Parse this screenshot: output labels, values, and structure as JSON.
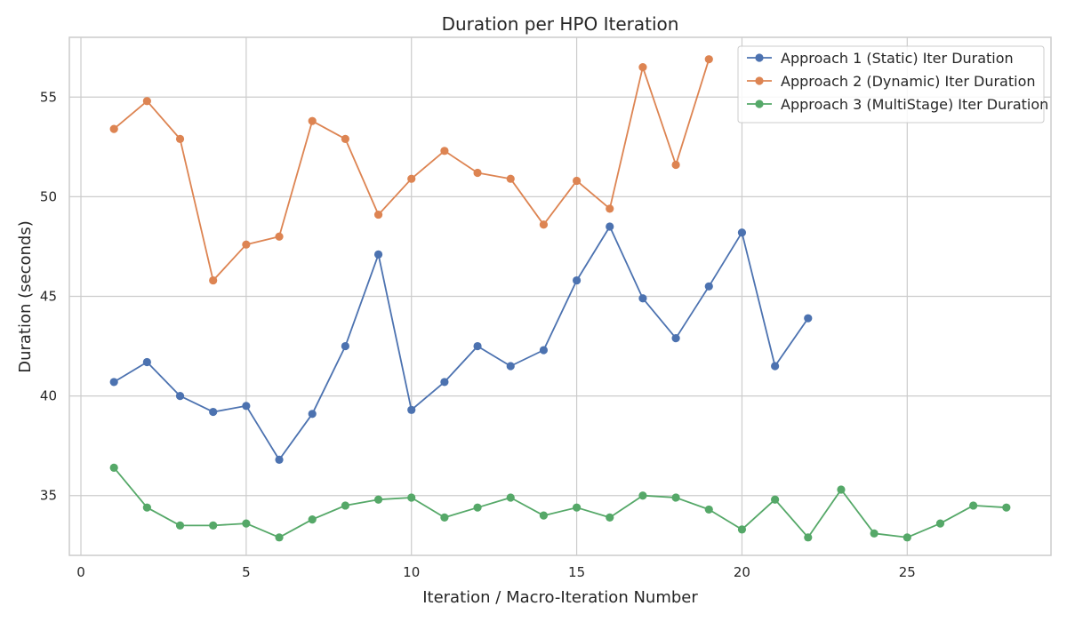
{
  "chart_data": {
    "type": "line",
    "title": "Duration per HPO Iteration",
    "xlabel": "Iteration / Macro-Iteration Number",
    "ylabel": "Duration (seconds)",
    "xlim": [
      -0.35,
      29.35
    ],
    "ylim": [
      32.0,
      58.0
    ],
    "xticks": [
      0,
      5,
      10,
      15,
      20,
      25
    ],
    "yticks": [
      35,
      40,
      45,
      50,
      55
    ],
    "grid": true,
    "legend_position": "top-right",
    "series": [
      {
        "name": "Approach 1 (Static) Iter Duration",
        "color": "#4c72b0",
        "x": [
          1,
          2,
          3,
          4,
          5,
          6,
          7,
          8,
          9,
          10,
          11,
          12,
          13,
          14,
          15,
          16,
          17,
          18,
          19,
          20,
          21,
          22
        ],
        "y": [
          40.7,
          41.7,
          40.0,
          39.2,
          39.5,
          36.8,
          39.1,
          42.5,
          47.1,
          39.3,
          40.7,
          42.5,
          41.5,
          42.3,
          45.8,
          48.5,
          44.9,
          42.9,
          45.5,
          48.2,
          41.5,
          43.9
        ]
      },
      {
        "name": "Approach 2 (Dynamic) Iter Duration",
        "color": "#dd8452",
        "x": [
          1,
          2,
          3,
          4,
          5,
          6,
          7,
          8,
          9,
          10,
          11,
          12,
          13,
          14,
          15,
          16,
          17,
          18,
          19
        ],
        "y": [
          53.4,
          54.8,
          52.9,
          45.8,
          47.6,
          48.0,
          53.8,
          52.9,
          49.1,
          50.9,
          52.3,
          51.2,
          50.9,
          48.6,
          50.8,
          49.4,
          56.5,
          51.6,
          56.9
        ]
      },
      {
        "name": "Approach 3 (MultiStage) Iter Duration",
        "color": "#55a868",
        "x": [
          1,
          2,
          3,
          4,
          5,
          6,
          7,
          8,
          9,
          10,
          11,
          12,
          13,
          14,
          15,
          16,
          17,
          18,
          19,
          20,
          21,
          22,
          23,
          24,
          25,
          26,
          27,
          28
        ],
        "y": [
          36.4,
          34.4,
          33.5,
          33.5,
          33.6,
          32.9,
          33.8,
          34.5,
          34.8,
          34.9,
          33.9,
          34.4,
          34.9,
          34.0,
          34.4,
          33.9,
          35.0,
          34.9,
          34.3,
          33.3,
          34.8,
          32.9,
          35.3,
          33.1,
          32.9,
          33.6,
          34.5,
          34.4
        ]
      }
    ]
  }
}
